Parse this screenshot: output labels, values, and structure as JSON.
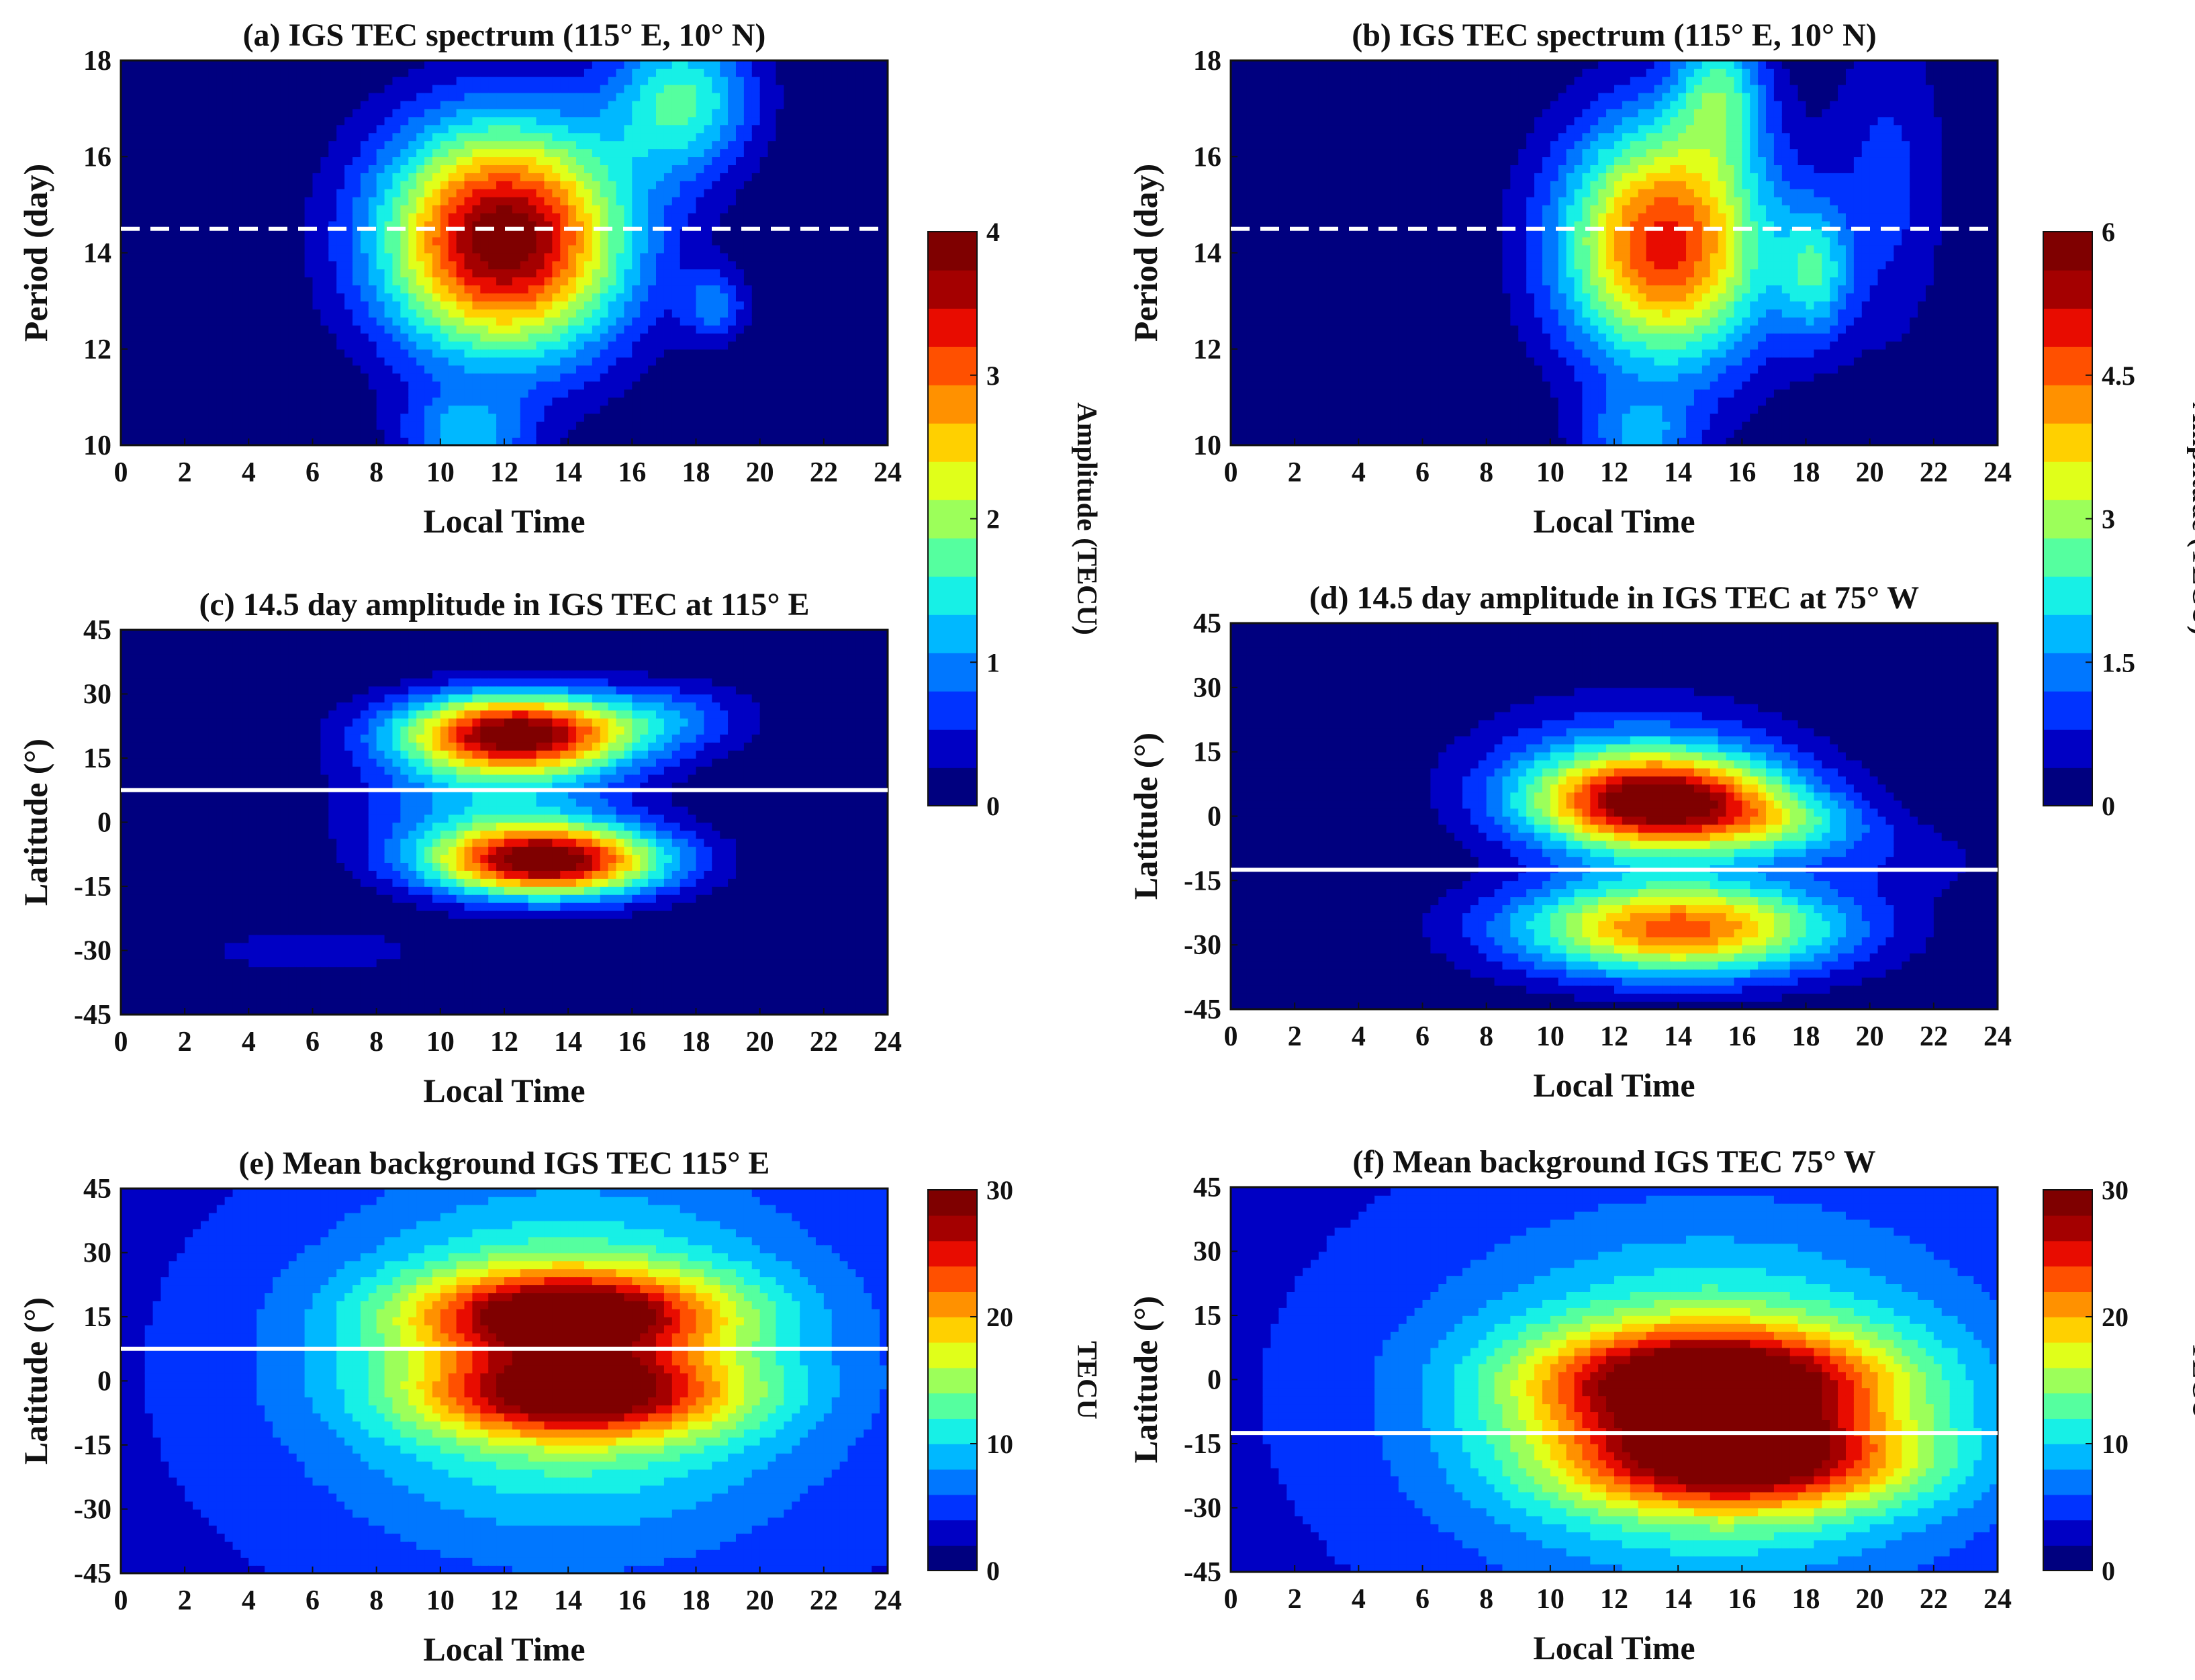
{
  "chart_data": [
    {
      "id": "a",
      "type": "heatmap",
      "title": "(a) IGS TEC spectrum (115° E, 10° N)",
      "xlabel": "Local Time",
      "ylabel": "Period (day)",
      "xlim": [
        0,
        24
      ],
      "ylim": [
        10,
        18
      ],
      "xticks": [
        "0",
        "2",
        "4",
        "6",
        "8",
        "10",
        "12",
        "14",
        "16",
        "18",
        "20",
        "22",
        "24"
      ],
      "yticks": [
        "10",
        "12",
        "14",
        "16",
        "18"
      ],
      "colorbar_max": 4,
      "blobs": [
        {
          "x": 12.0,
          "y": 14.3,
          "sx": 2.7,
          "sy": 1.7,
          "amp": 4.0
        },
        {
          "x": 17.6,
          "y": 17.2,
          "sx": 1.6,
          "sy": 1.1,
          "amp": 1.6
        },
        {
          "x": 18.6,
          "y": 12.9,
          "sx": 0.7,
          "sy": 0.5,
          "amp": 0.9
        },
        {
          "x": 10.8,
          "y": 10.2,
          "sx": 1.4,
          "sy": 0.6,
          "amp": 1.1
        }
      ],
      "reference_line": {
        "style": "dashed",
        "y": 14.5
      }
    },
    {
      "id": "b",
      "type": "heatmap",
      "title": "(b) IGS TEC spectrum (115° E, 10° N)",
      "xlabel": "Local Time",
      "ylabel": "Period (day)",
      "xlim": [
        0,
        24
      ],
      "ylim": [
        10,
        18
      ],
      "xticks": [
        "0",
        "2",
        "4",
        "6",
        "8",
        "10",
        "12",
        "14",
        "16",
        "18",
        "20",
        "22",
        "24"
      ],
      "yticks": [
        "10",
        "12",
        "14",
        "16",
        "18"
      ],
      "colorbar_max": 6,
      "blobs": [
        {
          "x": 13.6,
          "y": 14.2,
          "sx": 2.3,
          "sy": 1.8,
          "amp": 5.0
        },
        {
          "x": 15.3,
          "y": 17.4,
          "sx": 1.0,
          "sy": 1.0,
          "amp": 2.0
        },
        {
          "x": 18.3,
          "y": 13.6,
          "sx": 0.8,
          "sy": 1.0,
          "amp": 1.8
        },
        {
          "x": 12.8,
          "y": 10.2,
          "sx": 1.3,
          "sy": 0.6,
          "amp": 1.4
        },
        {
          "x": 20.6,
          "y": 15.5,
          "sx": 1.3,
          "sy": 2.5,
          "amp": 0.9
        }
      ],
      "reference_line": {
        "style": "dashed",
        "y": 14.5
      }
    },
    {
      "id": "c",
      "type": "heatmap",
      "title": "(c) 14.5 day amplitude in IGS TEC at 115° E",
      "xlabel": "Local Time",
      "ylabel": "Latitude (°)",
      "xlim": [
        0,
        24
      ],
      "ylim": [
        -45,
        45
      ],
      "xticks": [
        "0",
        "2",
        "4",
        "6",
        "8",
        "10",
        "12",
        "14",
        "16",
        "18",
        "20",
        "22",
        "24"
      ],
      "yticks": [
        "-45",
        "-30",
        "-15",
        "0",
        "15",
        "30",
        "45"
      ],
      "colorbar_max": 4,
      "blobs": [
        {
          "x": 12.4,
          "y": 21,
          "sx": 2.6,
          "sy": 6.5,
          "amp": 3.9
        },
        {
          "x": 13.3,
          "y": -9,
          "sx": 2.6,
          "sy": 6.0,
          "amp": 3.9
        },
        {
          "x": 11.5,
          "y": 5,
          "sx": 3.0,
          "sy": 9.0,
          "amp": 1.0
        },
        {
          "x": 17.5,
          "y": 25,
          "sx": 1.8,
          "sy": 6.0,
          "amp": 0.6
        },
        {
          "x": 6.0,
          "y": -30,
          "sx": 3.0,
          "sy": 5.0,
          "amp": 0.4
        }
      ],
      "reference_line": {
        "style": "solid",
        "y": 7.5
      }
    },
    {
      "id": "d",
      "type": "heatmap",
      "title": "(d) 14.5 day amplitude in IGS TEC at 75° W",
      "xlabel": "Local Time",
      "ylabel": "Latitude (°)",
      "xlim": [
        0,
        24
      ],
      "ylim": [
        -45,
        45
      ],
      "xticks": [
        "0",
        "2",
        "4",
        "6",
        "8",
        "10",
        "12",
        "14",
        "16",
        "18",
        "20",
        "22",
        "24"
      ],
      "yticks": [
        "-45",
        "-30",
        "-15",
        "0",
        "15",
        "30",
        "45"
      ],
      "colorbar_max": 6,
      "blobs": [
        {
          "x": 13.4,
          "y": 3,
          "sx": 2.8,
          "sy": 8.0,
          "amp": 5.5
        },
        {
          "x": 14.0,
          "y": -26,
          "sx": 3.6,
          "sy": 8.0,
          "amp": 4.6
        },
        {
          "x": 12.5,
          "y": 12,
          "sx": 3.5,
          "sy": 12,
          "amp": 1.2
        },
        {
          "x": 17.5,
          "y": -2,
          "sx": 2.0,
          "sy": 5.0,
          "amp": 1.3
        },
        {
          "x": 21.0,
          "y": -10,
          "sx": 2.5,
          "sy": 6.0,
          "amp": 0.5
        }
      ],
      "reference_line": {
        "style": "solid",
        "y": -12.5
      }
    },
    {
      "id": "e",
      "type": "heatmap",
      "title": "(e) Mean background IGS TEC 115° E",
      "xlabel": "Local Time",
      "ylabel": "Latitude (°)",
      "xlim": [
        0,
        24
      ],
      "ylim": [
        -45,
        45
      ],
      "xticks": [
        "0",
        "2",
        "4",
        "6",
        "8",
        "10",
        "12",
        "14",
        "16",
        "18",
        "20",
        "22",
        "24"
      ],
      "yticks": [
        "-45",
        "-30",
        "-15",
        "0",
        "15",
        "30",
        "45"
      ],
      "colorbar_max": 30,
      "blobs": [
        {
          "x": 14.0,
          "y": 16,
          "sx": 3.4,
          "sy": 7.0,
          "amp": 18
        },
        {
          "x": 14.4,
          "y": -3,
          "sx": 3.4,
          "sy": 7.0,
          "amp": 17
        },
        {
          "x": 14.0,
          "y": 6,
          "sx": 4.8,
          "sy": 25,
          "amp": 11
        },
        {
          "x": 14.0,
          "y": 0,
          "sx": 8.0,
          "sy": 40,
          "amp": 3
        }
      ],
      "base": 3,
      "reference_line": {
        "style": "solid",
        "y": 7.5
      }
    },
    {
      "id": "f",
      "type": "heatmap",
      "title": "(f) Mean background IGS TEC 75° W",
      "xlabel": "Local Time",
      "ylabel": "Latitude (°)",
      "xlim": [
        0,
        24
      ],
      "ylim": [
        -45,
        45
      ],
      "xticks": [
        "0",
        "2",
        "4",
        "6",
        "8",
        "10",
        "12",
        "14",
        "16",
        "18",
        "20",
        "22",
        "24"
      ],
      "yticks": [
        "-45",
        "-30",
        "-15",
        "0",
        "15",
        "30",
        "45"
      ],
      "colorbar_max": 30,
      "blobs": [
        {
          "x": 15.0,
          "y": 0,
          "sx": 3.8,
          "sy": 8.5,
          "amp": 19
        },
        {
          "x": 16.0,
          "y": -19,
          "sx": 3.8,
          "sy": 8.0,
          "amp": 17
        },
        {
          "x": 15.0,
          "y": -8,
          "sx": 5.0,
          "sy": 24,
          "amp": 12
        },
        {
          "x": 15.0,
          "y": 0,
          "sx": 8.5,
          "sy": 42,
          "amp": 3
        }
      ],
      "base": 3,
      "reference_line": {
        "style": "solid",
        "y": -12.5
      }
    }
  ],
  "colorbars": [
    {
      "id": "cb1",
      "label": "Amplitude (TECU)",
      "ticks": [
        "0",
        "1",
        "2",
        "3",
        "4"
      ],
      "values": [
        0,
        1,
        2,
        3,
        4
      ],
      "max": 4
    },
    {
      "id": "cb2",
      "label": "Amplitude (TECU)",
      "ticks": [
        "0",
        "1.5",
        "3",
        "4.5",
        "6"
      ],
      "values": [
        0,
        1.5,
        3,
        4.5,
        6
      ],
      "max": 6
    },
    {
      "id": "cb3",
      "label": "TECU",
      "ticks": [
        "0",
        "10",
        "20",
        "30"
      ],
      "values": [
        0,
        10,
        20,
        30
      ],
      "max": 30
    },
    {
      "id": "cb4",
      "label": "TECU",
      "ticks": [
        "0",
        "10",
        "20",
        "30"
      ],
      "values": [
        0,
        10,
        20,
        30
      ],
      "max": 30
    }
  ],
  "palette": [
    "#00007f",
    "#0000c4",
    "#0033ff",
    "#0077ff",
    "#00b8ff",
    "#17f0e6",
    "#55ff9f",
    "#9cff5a",
    "#e0ff1a",
    "#ffd000",
    "#ff9100",
    "#ff5000",
    "#e80c00",
    "#a40000",
    "#7f0000"
  ]
}
